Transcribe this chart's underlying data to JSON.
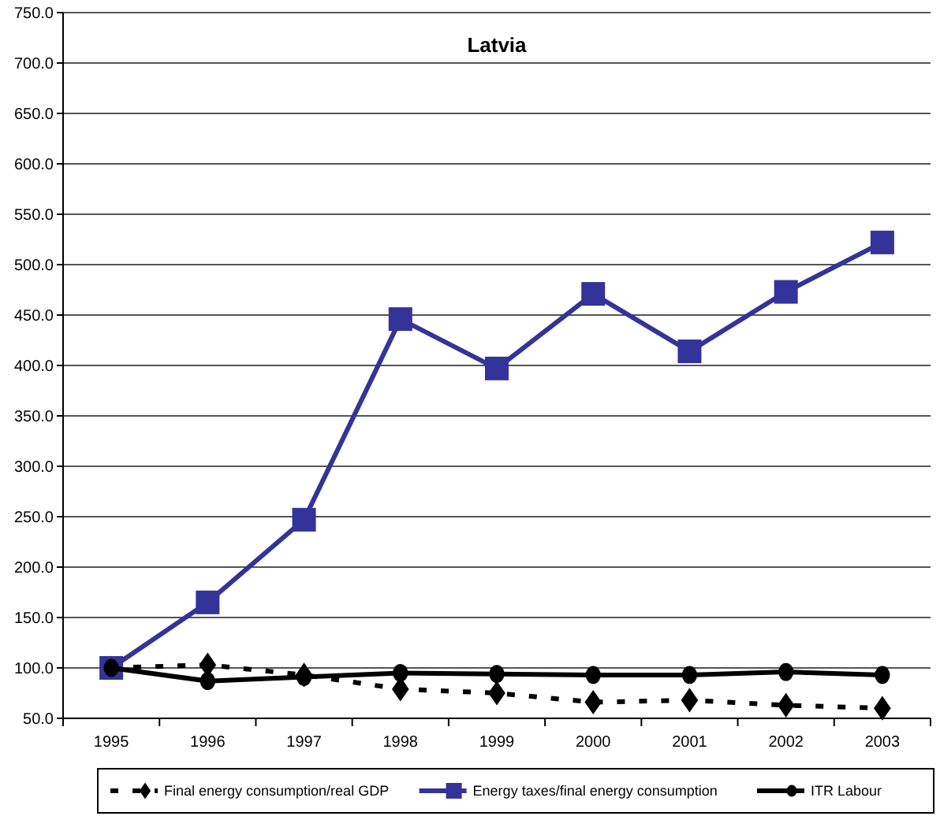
{
  "chart_data": {
    "type": "line",
    "title": "Latvia",
    "categories": [
      "1995",
      "1996",
      "1997",
      "1998",
      "1999",
      "2000",
      "2001",
      "2002",
      "2003"
    ],
    "series": [
      {
        "name": "Final energy consumption/real GDP",
        "color": "#000000",
        "marker": "diamond",
        "line_style": "dotted",
        "values": [
          100,
          103,
          93,
          79,
          75,
          66,
          68,
          63,
          60
        ]
      },
      {
        "name": "Energy taxes/final energy consumption",
        "color": "#333399",
        "marker": "square",
        "line_style": "solid",
        "values": [
          100,
          165,
          247,
          446,
          397,
          471,
          414,
          473,
          522
        ]
      },
      {
        "name": "ITR Labour",
        "color": "#000000",
        "marker": "circle",
        "line_style": "solid",
        "values": [
          100,
          87,
          91,
          95,
          94,
          93,
          93,
          96,
          93
        ]
      }
    ],
    "ylim": [
      50,
      750
    ],
    "yticks": [
      {
        "value": 50,
        "label": "50.0"
      },
      {
        "value": 100,
        "label": "100.0"
      },
      {
        "value": 150,
        "label": "150.0"
      },
      {
        "value": 200,
        "label": "200.0"
      },
      {
        "value": 250,
        "label": "250.0"
      },
      {
        "value": 300,
        "label": "300.0"
      },
      {
        "value": 350,
        "label": "350.0"
      },
      {
        "value": 400,
        "label": "400.0"
      },
      {
        "value": 450,
        "label": "450.0"
      },
      {
        "value": 500,
        "label": "500.0"
      },
      {
        "value": 550,
        "label": "550.0"
      },
      {
        "value": 600,
        "label": "600.0"
      },
      {
        "value": 650,
        "label": "650.0"
      },
      {
        "value": 700,
        "label": "700.0"
      },
      {
        "value": 750,
        "label": "750.0"
      }
    ],
    "grid": "y",
    "legend": "bottom"
  }
}
